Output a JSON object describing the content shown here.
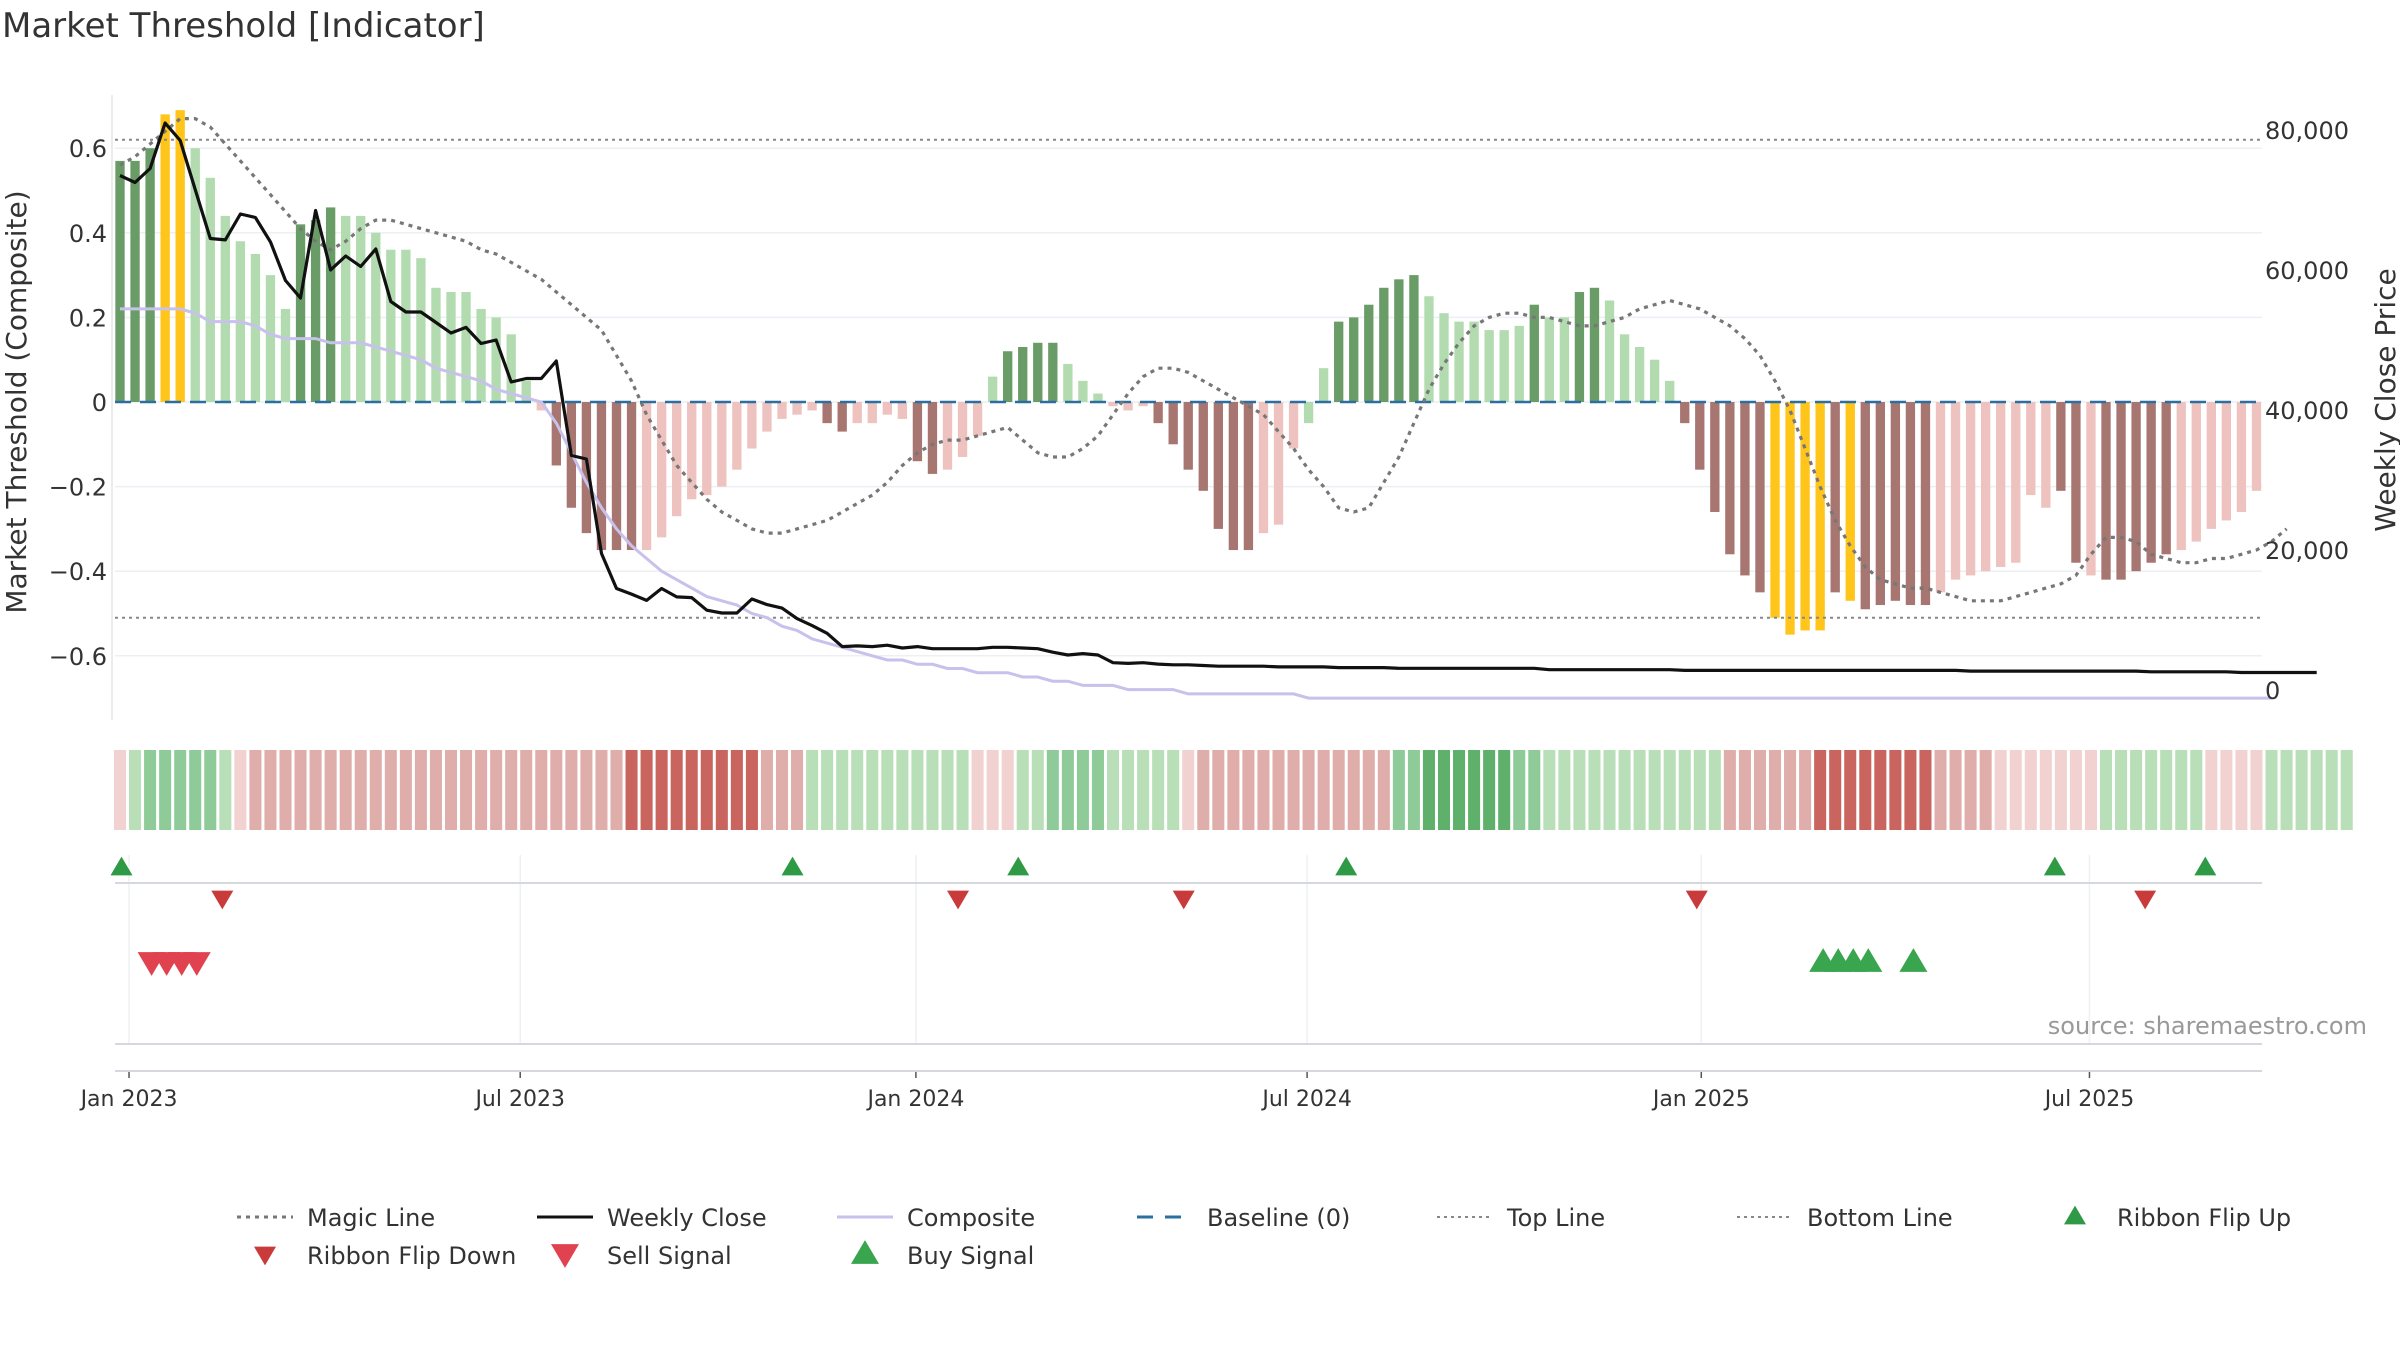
{
  "chart_data": {
    "type": "bar",
    "title": "Market Threshold [Indicator]",
    "ylabel": "Market Threshold (Composite)",
    "y2label": "Weekly Close Price",
    "source": "source: sharemaestro.com",
    "ylim": [
      -0.7,
      0.76
    ],
    "y2lim": [
      -2000,
      88000
    ],
    "yticks": [
      0.6,
      0.4,
      0.2,
      0,
      -0.2,
      -0.4,
      -0.6
    ],
    "ytick_labels": [
      "0.6",
      "0.4",
      "0.2",
      "0",
      "−0.2",
      "−0.4",
      "−0.6"
    ],
    "y2ticks": [
      80000,
      60000,
      40000,
      20000,
      0
    ],
    "y2tick_labels": [
      "80,000",
      "60,000",
      "40,000",
      "20,000",
      "0"
    ],
    "xticks": [
      {
        "label": "Jan 2023",
        "week": 0.6
      },
      {
        "label": "Jul 2023",
        "week": 26.6
      },
      {
        "label": "Jan 2024",
        "week": 52.9
      },
      {
        "label": "Jul 2024",
        "week": 78.9
      },
      {
        "label": "Jan 2025",
        "week": 105.1
      },
      {
        "label": "Jul 2025",
        "week": 130.9
      }
    ],
    "first_week": "2022-12-26",
    "top_line": 0.62,
    "bottom_line": -0.51,
    "baseline": 0,
    "composite_bars": [
      0.57,
      0.57,
      0.6,
      0.68,
      0.69,
      0.6,
      0.53,
      0.44,
      0.38,
      0.35,
      0.3,
      0.22,
      0.42,
      0.43,
      0.46,
      0.44,
      0.44,
      0.4,
      0.36,
      0.36,
      0.34,
      0.27,
      0.26,
      0.26,
      0.22,
      0.2,
      0.16,
      0.05,
      -0.02,
      -0.15,
      -0.25,
      -0.31,
      -0.35,
      -0.35,
      -0.35,
      -0.35,
      -0.32,
      -0.27,
      -0.23,
      -0.22,
      -0.2,
      -0.16,
      -0.11,
      -0.07,
      -0.04,
      -0.03,
      -0.02,
      -0.05,
      -0.07,
      -0.05,
      -0.05,
      -0.03,
      -0.04,
      -0.14,
      -0.17,
      -0.16,
      -0.13,
      -0.08,
      0.06,
      0.12,
      0.13,
      0.14,
      0.14,
      0.09,
      0.05,
      0.02,
      -0.01,
      -0.02,
      -0.01,
      -0.05,
      -0.1,
      -0.16,
      -0.21,
      -0.3,
      -0.35,
      -0.35,
      -0.31,
      -0.29,
      -0.11,
      -0.05,
      0.08,
      0.19,
      0.2,
      0.23,
      0.27,
      0.29,
      0.3,
      0.25,
      0.21,
      0.19,
      0.19,
      0.17,
      0.17,
      0.18,
      0.23,
      0.2,
      0.2,
      0.26,
      0.27,
      0.24,
      0.16,
      0.13,
      0.1,
      0.05,
      -0.05,
      -0.16,
      -0.26,
      -0.36,
      -0.41,
      -0.45,
      -0.51,
      -0.55,
      -0.54,
      -0.54,
      -0.45,
      -0.47,
      -0.49,
      -0.48,
      -0.47,
      -0.48,
      -0.48,
      -0.45,
      -0.42,
      -0.41,
      -0.4,
      -0.39,
      -0.38,
      -0.22,
      -0.25,
      -0.21,
      -0.38,
      -0.41,
      -0.42,
      -0.42,
      -0.4,
      -0.38,
      -0.36,
      -0.35,
      -0.33,
      -0.3,
      -0.28,
      -0.26,
      -0.21
    ],
    "bar_classes": [
      2,
      3,
      2,
      4,
      4,
      1,
      1,
      1,
      1,
      1,
      1,
      1,
      3,
      3,
      3,
      1,
      1,
      1,
      1,
      1,
      1,
      1,
      1,
      1,
      1,
      1,
      1,
      1,
      -1,
      -2,
      -3,
      -3,
      -3,
      -3,
      -2,
      -1,
      -1,
      -1,
      -1,
      -1,
      -1,
      -1,
      -1,
      -1,
      -1,
      -1,
      -1,
      -3,
      -3,
      -1,
      -1,
      -1,
      -1,
      -3,
      -3,
      -1,
      -1,
      -1,
      1,
      3,
      3,
      3,
      3,
      1,
      1,
      1,
      -1,
      -1,
      -1,
      -3,
      -3,
      -3,
      -3,
      -3,
      -3,
      -3,
      -1,
      -1,
      -1,
      1,
      1,
      3,
      3,
      3,
      3,
      3,
      3,
      1,
      1,
      1,
      1,
      1,
      1,
      1,
      3,
      1,
      1,
      3,
      3,
      1,
      1,
      1,
      1,
      1,
      -3,
      -3,
      -3,
      -3,
      -3,
      -3,
      4,
      4,
      4,
      4,
      -3,
      4,
      -3,
      -3,
      -3,
      -3,
      -3,
      -1,
      -1,
      -1,
      -1,
      -1,
      -1,
      -1,
      -1,
      -3,
      -3,
      -1,
      -3,
      -3,
      -3,
      -3,
      -3,
      -1,
      -1,
      -1,
      -1,
      -1,
      -1,
      -1,
      -1
    ],
    "ribbon": [
      -1,
      1,
      2,
      2,
      2,
      2,
      2,
      1,
      -1,
      -2,
      -2,
      -2,
      -2,
      -2,
      -2,
      -2,
      -2,
      -2,
      -2,
      -2,
      -2,
      -2,
      -2,
      -2,
      -2,
      -2,
      -2,
      -2,
      -2,
      -2,
      -2,
      -2,
      -2,
      -2,
      -3,
      -3,
      -3,
      -3,
      -3,
      -3,
      -3,
      -3,
      -3,
      -2,
      -2,
      -2,
      1,
      1,
      1,
      1,
      1,
      1,
      1,
      1,
      1,
      1,
      1,
      -1,
      -1,
      -1,
      1,
      1,
      2,
      2,
      2,
      2,
      1,
      1,
      1,
      1,
      1,
      -1,
      -2,
      -2,
      -2,
      -2,
      -2,
      -2,
      -2,
      -2,
      -2,
      -2,
      -2,
      -2,
      -2,
      2,
      2,
      3,
      3,
      3,
      3,
      3,
      3,
      2,
      2,
      1,
      1,
      1,
      1,
      1,
      1,
      1,
      1,
      1,
      1,
      1,
      1,
      -2,
      -2,
      -2,
      -2,
      -2,
      -2,
      -3,
      -3,
      -3,
      -3,
      -3,
      -3,
      -3,
      -3,
      -2,
      -2,
      -2,
      -2,
      -1,
      -1,
      -1,
      -1,
      -1,
      -1,
      -1,
      1,
      1,
      1,
      1,
      1,
      1,
      1,
      -1,
      -1,
      -1,
      -1,
      1,
      1,
      1,
      1,
      1,
      1
    ],
    "series": [
      {
        "name": "Magic Line",
        "values": [
          0.56,
          0.58,
          0.61,
          0.64,
          0.67,
          0.67,
          0.65,
          0.61,
          0.57,
          0.53,
          0.49,
          0.45,
          0.41,
          0.38,
          0.36,
          0.38,
          0.41,
          0.43,
          0.43,
          0.42,
          0.41,
          0.4,
          0.39,
          0.38,
          0.36,
          0.35,
          0.33,
          0.31,
          0.29,
          0.26,
          0.23,
          0.2,
          0.17,
          0.11,
          0.05,
          -0.03,
          -0.09,
          -0.15,
          -0.19,
          -0.23,
          -0.26,
          -0.28,
          -0.3,
          -0.31,
          -0.31,
          -0.3,
          -0.29,
          -0.28,
          -0.26,
          -0.24,
          -0.22,
          -0.19,
          -0.15,
          -0.12,
          -0.1,
          -0.09,
          -0.09,
          -0.08,
          -0.07,
          -0.06,
          -0.09,
          -0.12,
          -0.13,
          -0.13,
          -0.11,
          -0.08,
          -0.03,
          0.02,
          0.06,
          0.08,
          0.08,
          0.07,
          0.05,
          0.03,
          0.01,
          -0.01,
          -0.03,
          -0.07,
          -0.11,
          -0.16,
          -0.2,
          -0.25,
          -0.26,
          -0.25,
          -0.19,
          -0.13,
          -0.05,
          0.03,
          0.09,
          0.14,
          0.18,
          0.2,
          0.21,
          0.21,
          0.2,
          0.2,
          0.19,
          0.18,
          0.18,
          0.19,
          0.2,
          0.22,
          0.23,
          0.24,
          0.23,
          0.22,
          0.2,
          0.18,
          0.15,
          0.11,
          0.05,
          -0.02,
          -0.11,
          -0.2,
          -0.28,
          -0.34,
          -0.39,
          -0.42,
          -0.43,
          -0.44,
          -0.44,
          -0.45,
          -0.46,
          -0.47,
          -0.47,
          -0.47,
          -0.46,
          -0.45,
          -0.44,
          -0.43,
          -0.41,
          -0.36,
          -0.32,
          -0.32,
          -0.33,
          -0.36,
          -0.37,
          -0.38,
          -0.38,
          -0.37,
          -0.37,
          -0.36,
          -0.35,
          -0.33,
          -0.3
        ]
      },
      {
        "name": "Weekly Close",
        "values": [
          73500,
          72500,
          74500,
          81000,
          78500,
          71500,
          64500,
          64300,
          68000,
          67500,
          64000,
          58500,
          56000,
          68500,
          60000,
          62000,
          60500,
          63000,
          55500,
          54000,
          54000,
          52500,
          51000,
          51800,
          49500,
          50000,
          44000,
          44500,
          44500,
          47000,
          33500,
          33000,
          19500,
          14500,
          13700,
          12800,
          14500,
          13300,
          13200,
          11400,
          11000,
          11000,
          13000,
          12200,
          11700,
          10200,
          9200,
          8100,
          6200,
          6300,
          6200,
          6400,
          6000,
          6200,
          5900,
          5900,
          5900,
          5900,
          6100,
          6100,
          6000,
          5900,
          5400,
          5000,
          5200,
          5000,
          3900,
          3800,
          3900,
          3700,
          3600,
          3600,
          3500,
          3400,
          3400,
          3400,
          3400,
          3300,
          3300,
          3300,
          3300,
          3200,
          3200,
          3200,
          3200,
          3100,
          3100,
          3100,
          3100,
          3100,
          3100,
          3100,
          3100,
          3100,
          3100,
          2900,
          2900,
          2900,
          2900,
          2900,
          2900,
          2900,
          2900,
          2900,
          2800,
          2800,
          2800,
          2800,
          2800,
          2800,
          2800,
          2800,
          2800,
          2800,
          2800,
          2800,
          2800,
          2800,
          2800,
          2800,
          2800,
          2800,
          2800,
          2700,
          2700,
          2700,
          2700,
          2700,
          2700,
          2700,
          2700,
          2700,
          2700,
          2700,
          2700,
          2600,
          2600,
          2600,
          2600,
          2600,
          2600,
          2500,
          2500,
          2500,
          2500,
          2500,
          2500
        ]
      },
      {
        "name": "Composite",
        "values": [
          0.22,
          0.22,
          0.22,
          0.22,
          0.22,
          0.21,
          0.19,
          0.19,
          0.19,
          0.18,
          0.16,
          0.15,
          0.15,
          0.15,
          0.14,
          0.14,
          0.14,
          0.13,
          0.12,
          0.11,
          0.1,
          0.08,
          0.07,
          0.06,
          0.05,
          0.03,
          0.02,
          0.01,
          0.0,
          -0.05,
          -0.12,
          -0.19,
          -0.25,
          -0.3,
          -0.34,
          -0.37,
          -0.4,
          -0.42,
          -0.44,
          -0.46,
          -0.47,
          -0.48,
          -0.5,
          -0.51,
          -0.53,
          -0.54,
          -0.56,
          -0.57,
          -0.58,
          -0.59,
          -0.6,
          -0.61,
          -0.61,
          -0.62,
          -0.62,
          -0.63,
          -0.63,
          -0.64,
          -0.64,
          -0.64,
          -0.65,
          -0.65,
          -0.66,
          -0.66,
          -0.67,
          -0.67,
          -0.67,
          -0.68,
          -0.68,
          -0.68,
          -0.68,
          -0.69,
          -0.69,
          -0.69,
          -0.69,
          -0.69,
          -0.69,
          -0.69,
          -0.69,
          -0.7,
          -0.7,
          -0.7,
          -0.7,
          -0.7,
          -0.7,
          -0.7,
          -0.7,
          -0.7,
          -0.7,
          -0.7,
          -0.7,
          -0.7,
          -0.7,
          -0.7,
          -0.7,
          -0.7,
          -0.7,
          -0.7,
          -0.7,
          -0.7,
          -0.7,
          -0.7,
          -0.7,
          -0.7,
          -0.7,
          -0.7,
          -0.7,
          -0.7,
          -0.7,
          -0.7,
          -0.7,
          -0.7,
          -0.7,
          -0.7,
          -0.7,
          -0.7,
          -0.7,
          -0.7,
          -0.7,
          -0.7,
          -0.7,
          -0.7,
          -0.7,
          -0.7,
          -0.7,
          -0.7,
          -0.7,
          -0.7,
          -0.7,
          -0.7,
          -0.7,
          -0.7,
          -0.7,
          -0.7,
          -0.7,
          -0.7,
          -0.7,
          -0.7,
          -0.7,
          -0.7,
          -0.7,
          -0.7,
          -0.7,
          -0.7
        ]
      }
    ],
    "ribbon_flip_up_weeks": [
      0.1,
      44.7,
      59.7,
      81.5,
      128.6,
      138.6
    ],
    "ribbon_flip_down_weeks": [
      6.8,
      55.7,
      70.7,
      104.8,
      134.6
    ],
    "sell_signal_weeks": [
      2.1,
      3.1,
      4.1,
      5.1
    ],
    "buy_signal_weeks": [
      113.2,
      114.2,
      115.2,
      116.2,
      119.2
    ],
    "colors": {
      "up_light": "#b3dbb0",
      "up_dark": "#6a9c67",
      "down_light": "#eec3bf",
      "down_dark": "#a77671",
      "extreme": "#ffc51a",
      "magic_line": "#777777",
      "weekly_close": "#111111",
      "composite": "#c7c1ec",
      "baseline": "#2b6fa1",
      "ref_line": "#888888",
      "flip_up": "#2e9a46",
      "flip_down": "#c93a3a",
      "sell": "#e0434f",
      "buy": "#3aa54f"
    },
    "legend": [
      {
        "label": "Magic Line",
        "kind": "dotted-line",
        "color": "#777777"
      },
      {
        "label": "Weekly Close",
        "kind": "solid-line",
        "color": "#111111"
      },
      {
        "label": "Composite",
        "kind": "solid-line",
        "color": "#c7c1ec"
      },
      {
        "label": "Baseline (0)",
        "kind": "dashed-line",
        "color": "#2b6fa1"
      },
      {
        "label": "Top Line",
        "kind": "fine-dotted-line",
        "color": "#888888"
      },
      {
        "label": "Bottom Line",
        "kind": "fine-dotted-line",
        "color": "#888888"
      },
      {
        "label": "Ribbon Flip Up",
        "kind": "triangle-up",
        "color": "#2e9a46"
      },
      {
        "label": "Ribbon Flip Down",
        "kind": "triangle-down",
        "color": "#c93a3a"
      },
      {
        "label": "Sell Signal",
        "kind": "triangle-down-big",
        "color": "#e0434f"
      },
      {
        "label": "Buy Signal",
        "kind": "triangle-up-big",
        "color": "#3aa54f"
      }
    ],
    "legend_position": "bottom"
  }
}
